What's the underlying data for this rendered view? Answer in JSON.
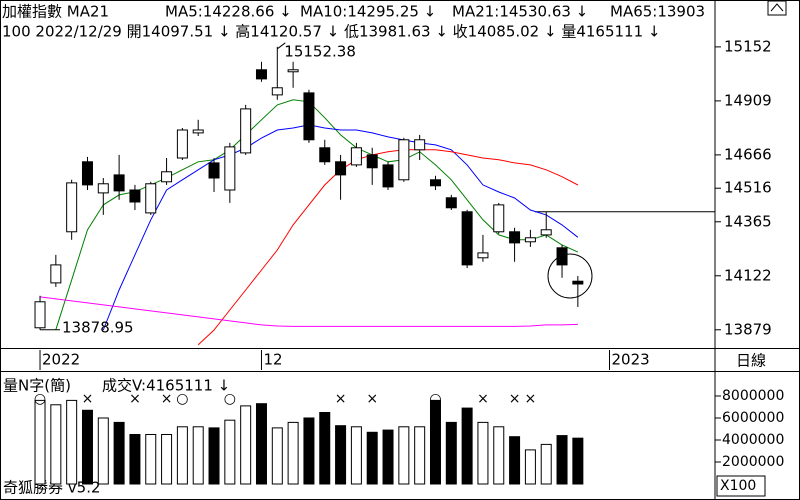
{
  "chart_data": {
    "type": "candlestick",
    "title": "加權指數 MA21",
    "info": "100 2022/12/29 開14097.51 ↓ 高14120.57 ↓ 低13981.63 ↓ 收14085.02 ↓ 量4165111 ↓",
    "open": [
      13888,
      14090,
      14320,
      14635,
      14495,
      14576,
      14508,
      14405,
      14545,
      14652,
      14765,
      14630,
      14508,
      14675,
      15049,
      14936,
      15040,
      14945,
      14698,
      14635,
      14621,
      14666,
      14621,
      14554,
      14689,
      14554,
      14473,
      14410,
      14203,
      14320,
      14320,
      14275,
      14306,
      14248,
      14097.51
    ],
    "high": [
      14032,
      14216,
      14554,
      14657,
      14562,
      14666,
      14531,
      14545,
      14652,
      14787,
      14824,
      14652,
      14720,
      14891,
      15085,
      15152.38,
      15085,
      14959,
      14734,
      14666,
      14720,
      14698,
      14635,
      14743,
      14756,
      14572,
      14486,
      14419,
      14306,
      14450,
      14338,
      14329,
      14410,
      14261,
      14120.57
    ],
    "low": [
      13878.95,
      14072,
      14284,
      14508,
      14396,
      14464,
      14418,
      14396,
      14531,
      14643,
      14751,
      14499,
      14450,
      14666,
      14995,
      14914,
      14968,
      14720,
      14621,
      14464,
      14612,
      14531,
      14508,
      14545,
      14643,
      14508,
      14418,
      14157,
      14185,
      14311,
      14185,
      14252,
      14293,
      14113,
      13981.63
    ],
    "close": [
      14005,
      14171,
      14540,
      14531,
      14536,
      14504,
      14454,
      14536,
      14590,
      14778,
      14778,
      14562,
      14702,
      14873,
      15008,
      14968,
      15049,
      14734,
      14635,
      14576,
      14698,
      14608,
      14522,
      14734,
      14734,
      14527,
      14428,
      14171,
      14225,
      14441,
      14270,
      14293,
      14329,
      14171,
      14085.02
    ],
    "up_color": "#ffffff",
    "down_color": "#000000",
    "series": [
      {
        "name": "MA5:14228.66 ↓",
        "color": "#008000",
        "values": [
          null,
          13879,
          14104,
          14329,
          14441,
          14486,
          14500,
          14531,
          14563,
          14599,
          14635,
          14644,
          14689,
          14756,
          14824,
          14891,
          14914,
          14905,
          14833,
          14756,
          14698,
          14666,
          14635,
          14644,
          14680,
          14621,
          14554,
          14464,
          14374,
          14306,
          14284,
          14284,
          14306,
          14261,
          14228.66
        ]
      },
      {
        "name": "MA10:14295.25 ↓",
        "color": "#0000ff",
        "values": [
          null,
          null,
          null,
          null,
          13878,
          14058,
          14216,
          14374,
          14508,
          14554,
          14599,
          14644,
          14666,
          14697,
          14742,
          14778,
          14787,
          14801,
          14787,
          14778,
          14778,
          14765,
          14747,
          14733,
          14720,
          14711,
          14689,
          14621,
          14531,
          14499,
          14472,
          14418,
          14396,
          14351,
          14295.25
        ]
      },
      {
        "name": "MA21:14530.63 ↓",
        "color": "#ff0000",
        "values": [
          null,
          null,
          null,
          null,
          null,
          null,
          null,
          null,
          null,
          null,
          13811,
          13878,
          13968,
          14058,
          14148,
          14238,
          14351,
          14441,
          14531,
          14599,
          14644,
          14666,
          14680,
          14689,
          14689,
          14689,
          14680,
          14666,
          14652,
          14644,
          14630,
          14621,
          14599,
          14568,
          14530.63
        ]
      },
      {
        "name": "MA65:13903",
        "color": "#ff00ff",
        "values": [
          14027,
          14018,
          14009,
          14000,
          13991,
          13982,
          13973,
          13964,
          13955,
          13946,
          13937,
          13928,
          13919,
          13910,
          13901,
          13896,
          13894,
          13894,
          13894,
          13894,
          13894,
          13894,
          13894,
          13894,
          13894,
          13894,
          13894,
          13894,
          13894,
          13894,
          13894,
          13896,
          13901,
          13901,
          13903
        ]
      }
    ],
    "reference_line": 14410,
    "ylim": [
      13797,
      15363
    ],
    "yticks": [
      15152,
      14909,
      14666,
      14516,
      14365,
      14122,
      13879
    ],
    "xlim": [
      -2.53,
      42.67
    ],
    "xticks": [
      {
        "value": 0,
        "label": "2022"
      },
      {
        "value": 14,
        "label": "12"
      },
      {
        "value": 36,
        "label": "2023"
      }
    ],
    "period": "日線",
    "scale_note": "X100",
    "footer": "奇狐勝券 v5.2",
    "volume": {
      "title": "量N字(簡)",
      "label": "成交V:4165111 ↓",
      "color": "#008000",
      "values": [
        7600000,
        7200000,
        7600000,
        6700000,
        6000000,
        5600000,
        4500000,
        4500000,
        4500000,
        5200000,
        5200000,
        5100000,
        5800000,
        7100000,
        7300000,
        5100000,
        5600000,
        6000000,
        6500000,
        5300000,
        5200000,
        4700000,
        4900000,
        5200000,
        5200000,
        7600000,
        5600000,
        6900000,
        5600000,
        5200000,
        4300000,
        3100000,
        3600000,
        4400000,
        4165111
      ],
      "signals": [
        "○",
        null,
        null,
        "×",
        null,
        null,
        "×",
        null,
        "×",
        "○",
        null,
        null,
        "○",
        null,
        null,
        null,
        null,
        null,
        null,
        "×",
        null,
        "×",
        null,
        null,
        null,
        "○",
        null,
        null,
        "×",
        null,
        "×",
        "×",
        null,
        null,
        null
      ],
      "signal_color": "#ff0000",
      "ylim": [
        0,
        10180000
      ],
      "yticks": [
        8000000,
        6000000,
        4000000,
        2000000
      ]
    }
  }
}
